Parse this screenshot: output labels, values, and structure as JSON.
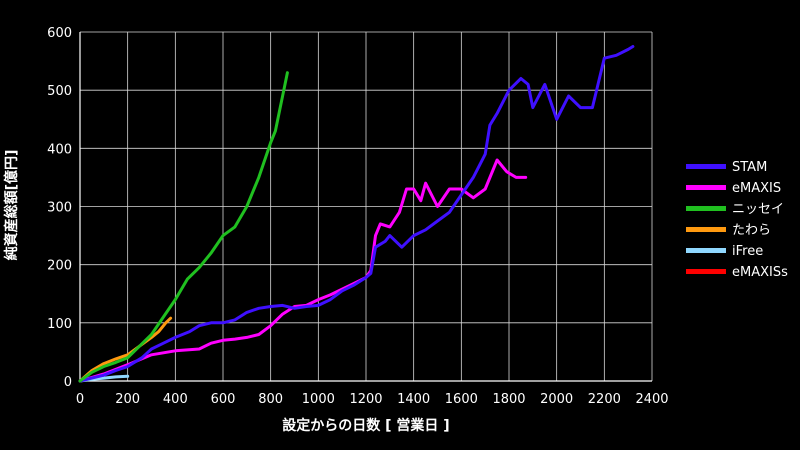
{
  "chart_data": {
    "type": "line",
    "title": "",
    "xlabel": "設定からの日数 [ 営業日 ]",
    "ylabel": "純資産総額[億円]",
    "xlim": [
      0,
      2400
    ],
    "ylim": [
      0,
      600
    ],
    "x_ticks": [
      "0",
      "200",
      "400",
      "600",
      "800",
      "1000",
      "1200",
      "1400",
      "1600",
      "1800",
      "2000",
      "2200",
      "2400"
    ],
    "y_ticks": [
      "0",
      "100",
      "200",
      "300",
      "400",
      "500",
      "600"
    ],
    "grid": true,
    "legend_position": "right",
    "series": [
      {
        "name": "STAM",
        "color": "#3f10ff",
        "points": [
          [
            0,
            0
          ],
          [
            50,
            5
          ],
          [
            100,
            10
          ],
          [
            150,
            18
          ],
          [
            200,
            25
          ],
          [
            260,
            40
          ],
          [
            300,
            55
          ],
          [
            350,
            65
          ],
          [
            400,
            75
          ],
          [
            460,
            85
          ],
          [
            500,
            95
          ],
          [
            550,
            100
          ],
          [
            600,
            100
          ],
          [
            650,
            105
          ],
          [
            700,
            118
          ],
          [
            750,
            125
          ],
          [
            800,
            128
          ],
          [
            850,
            130
          ],
          [
            900,
            125
          ],
          [
            950,
            128
          ],
          [
            1000,
            130
          ],
          [
            1050,
            140
          ],
          [
            1100,
            155
          ],
          [
            1150,
            165
          ],
          [
            1200,
            178
          ],
          [
            1220,
            185
          ],
          [
            1240,
            230
          ],
          [
            1280,
            240
          ],
          [
            1300,
            250
          ],
          [
            1350,
            230
          ],
          [
            1400,
            250
          ],
          [
            1450,
            260
          ],
          [
            1500,
            275
          ],
          [
            1550,
            290
          ],
          [
            1600,
            320
          ],
          [
            1650,
            350
          ],
          [
            1700,
            390
          ],
          [
            1720,
            440
          ],
          [
            1750,
            460
          ],
          [
            1800,
            500
          ],
          [
            1850,
            520
          ],
          [
            1880,
            510
          ],
          [
            1900,
            470
          ],
          [
            1950,
            510
          ],
          [
            2000,
            450
          ],
          [
            2050,
            490
          ],
          [
            2100,
            470
          ],
          [
            2150,
            470
          ],
          [
            2200,
            555
          ],
          [
            2250,
            560
          ],
          [
            2300,
            570
          ],
          [
            2320,
            575
          ]
        ]
      },
      {
        "name": "eMAXIS",
        "color": "#ff00ff",
        "points": [
          [
            0,
            0
          ],
          [
            100,
            12
          ],
          [
            200,
            28
          ],
          [
            300,
            45
          ],
          [
            400,
            52
          ],
          [
            500,
            55
          ],
          [
            550,
            65
          ],
          [
            600,
            70
          ],
          [
            650,
            72
          ],
          [
            700,
            75
          ],
          [
            750,
            80
          ],
          [
            800,
            95
          ],
          [
            850,
            115
          ],
          [
            900,
            128
          ],
          [
            950,
            130
          ],
          [
            1000,
            140
          ],
          [
            1050,
            148
          ],
          [
            1100,
            158
          ],
          [
            1150,
            168
          ],
          [
            1200,
            178
          ],
          [
            1220,
            190
          ],
          [
            1240,
            250
          ],
          [
            1260,
            270
          ],
          [
            1300,
            265
          ],
          [
            1340,
            290
          ],
          [
            1370,
            330
          ],
          [
            1400,
            330
          ],
          [
            1430,
            310
          ],
          [
            1450,
            340
          ],
          [
            1500,
            300
          ],
          [
            1550,
            330
          ],
          [
            1600,
            330
          ],
          [
            1650,
            315
          ],
          [
            1700,
            330
          ],
          [
            1750,
            380
          ],
          [
            1790,
            360
          ],
          [
            1830,
            350
          ],
          [
            1870,
            350
          ]
        ]
      },
      {
        "name": "ニッセイ",
        "color": "#20c020",
        "points": [
          [
            0,
            0
          ],
          [
            50,
            15
          ],
          [
            100,
            25
          ],
          [
            150,
            32
          ],
          [
            200,
            40
          ],
          [
            250,
            60
          ],
          [
            300,
            80
          ],
          [
            350,
            110
          ],
          [
            400,
            140
          ],
          [
            450,
            175
          ],
          [
            500,
            195
          ],
          [
            550,
            220
          ],
          [
            600,
            250
          ],
          [
            650,
            265
          ],
          [
            700,
            300
          ],
          [
            750,
            350
          ],
          [
            800,
            410
          ],
          [
            820,
            430
          ],
          [
            840,
            470
          ],
          [
            850,
            490
          ],
          [
            870,
            530
          ]
        ]
      },
      {
        "name": "たわら",
        "color": "#ff9a10",
        "points": [
          [
            0,
            0
          ],
          [
            50,
            18
          ],
          [
            100,
            30
          ],
          [
            150,
            38
          ],
          [
            200,
            45
          ],
          [
            250,
            60
          ],
          [
            300,
            75
          ],
          [
            330,
            85
          ],
          [
            360,
            100
          ],
          [
            380,
            108
          ]
        ]
      },
      {
        "name": "iFree",
        "color": "#90d8ff",
        "points": [
          [
            0,
            0
          ],
          [
            50,
            3
          ],
          [
            100,
            5
          ],
          [
            150,
            7
          ],
          [
            200,
            8
          ]
        ]
      },
      {
        "name": "eMAXISs",
        "color": "#ff0000",
        "points": []
      }
    ]
  }
}
